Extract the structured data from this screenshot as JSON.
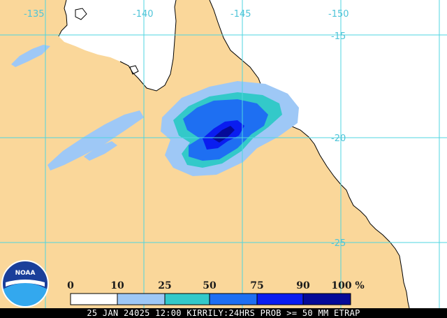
{
  "map": {
    "lon_labels": [
      "-135",
      "-140",
      "-145",
      "-150"
    ],
    "lat_labels": [
      "-15",
      "-20",
      "-25"
    ]
  },
  "legend": {
    "ticks": [
      "0",
      "10",
      "25",
      "50",
      "75",
      "90",
      "100"
    ],
    "unit": "%",
    "bins": [
      {
        "range": "0-10",
        "color": "#ffffff"
      },
      {
        "range": "10-25",
        "color": "#9ec8f6"
      },
      {
        "range": "25-50",
        "color": "#33c9c9"
      },
      {
        "range": "50-75",
        "color": "#1e6ff2"
      },
      {
        "range": "75-90",
        "color": "#0a1df0"
      },
      {
        "range": "90-100",
        "color": "#050a98"
      }
    ]
  },
  "caption": "25 JAN 24025 12:00 KIRRILY:24HRS PROB >= 50 MM ETRAP",
  "logo": {
    "text": "NOAA"
  },
  "colors": {
    "land": "#fad79a",
    "sea": "#ffffff",
    "grid": "#4fd6e0",
    "caption_bar": "#000000"
  }
}
